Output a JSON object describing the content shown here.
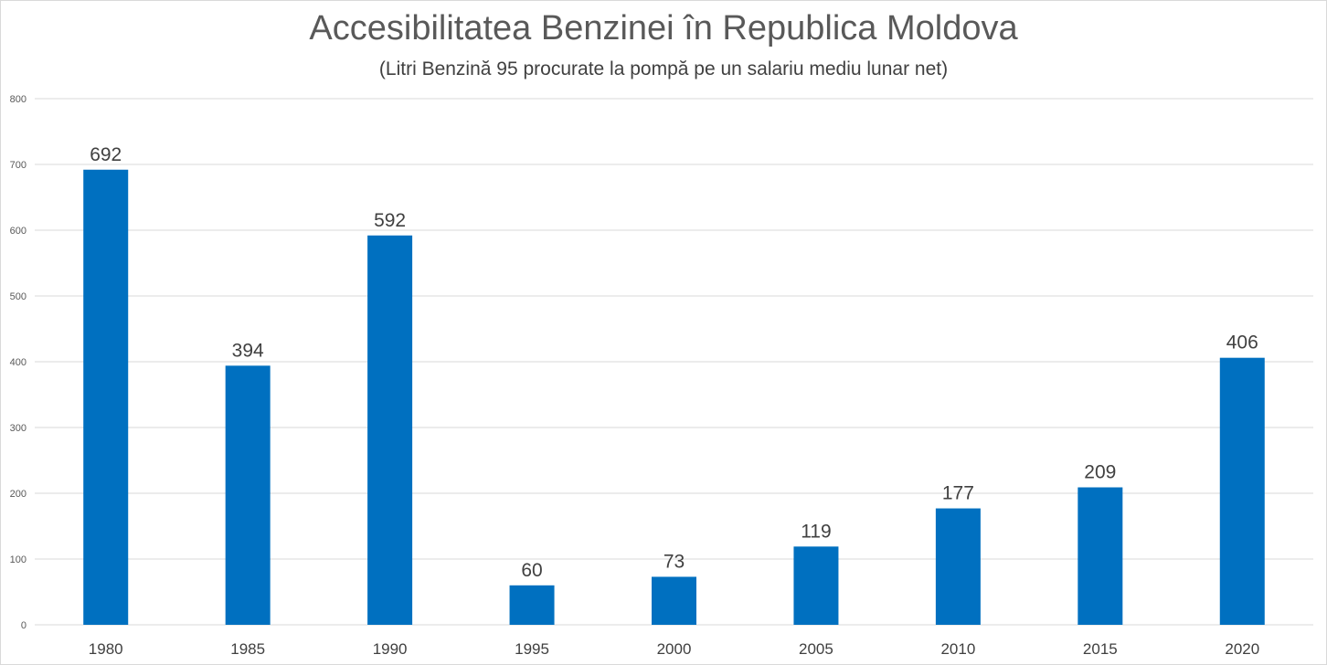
{
  "chart_data": {
    "type": "bar",
    "title": "Accesibilitatea Benzinei în Republica Moldova",
    "subtitle": "(Litri Benzină 95 procurate la pompă pe un salariu mediu lunar net)",
    "xlabel": "",
    "ylabel": "",
    "categories": [
      "1980",
      "1985",
      "1990",
      "1995",
      "2000",
      "2005",
      "2010",
      "2015",
      "2020"
    ],
    "values": [
      692,
      394,
      592,
      60,
      73,
      119,
      177,
      209,
      406
    ],
    "data_labels": [
      "692",
      "394",
      "592",
      "60",
      "73",
      "119",
      "177",
      "209",
      "406"
    ],
    "ylim": [
      0,
      800
    ],
    "yticks": [
      0,
      100,
      200,
      300,
      400,
      500,
      600,
      700,
      800
    ],
    "ytick_labels": [
      "0",
      "100",
      "200",
      "300",
      "400",
      "500",
      "600",
      "700",
      "800"
    ],
    "grid": true,
    "legend": "none",
    "colors": {
      "bar": "#0070c0",
      "grid": "#d9d9d9",
      "axis_text": "#595959",
      "label_text": "#404040"
    }
  }
}
